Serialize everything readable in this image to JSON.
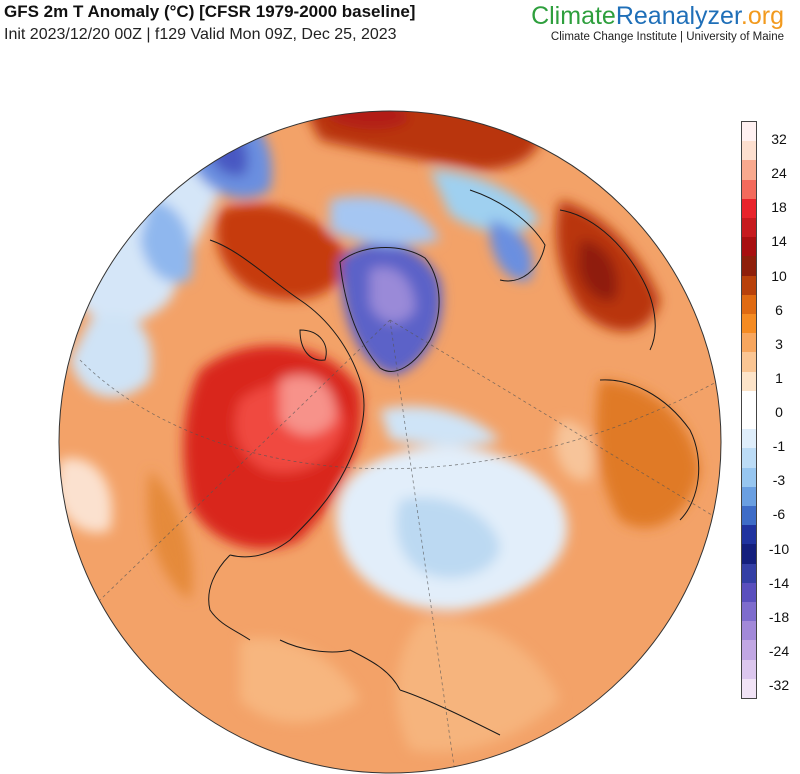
{
  "header": {
    "title": "GFS 2m T Anomaly (°C) [CFSR 1979-2000 baseline]",
    "subtitle": "Init 2023/12/20 00Z | f129 Valid Mon 09Z, Dec 25, 2023"
  },
  "brand": {
    "part_a": "Climate",
    "part_b": "Reanalyzer",
    "part_c": ".org",
    "tagline": "Climate Change Institute | University of Maine",
    "colors": {
      "climate": "#2e9f3d",
      "reanalyzer": "#1f6fb8",
      "org": "#f29a1e"
    }
  },
  "legend": {
    "labels": [
      "32",
      "24",
      "18",
      "14",
      "10",
      "6",
      "3",
      "1",
      "0",
      "-1",
      "-3",
      "-6",
      "-10",
      "-14",
      "-18",
      "-24",
      "-32"
    ],
    "colors": [
      "#fff1f1",
      "#fddfcf",
      "#f9a98e",
      "#f36a5c",
      "#e8232b",
      "#c61a1e",
      "#a80f10",
      "#8e1f0b",
      "#b8410b",
      "#df6a12",
      "#f58b22",
      "#f7a65e",
      "#fac593",
      "#fde4c9",
      "#ffffff",
      "#ffffff",
      "#dfeefb",
      "#bcdcf6",
      "#97c6f0",
      "#6a9fe1",
      "#3e6cc7",
      "#20339f",
      "#141f7d",
      "#343fa5",
      "#5a4fbd",
      "#7e6ccd",
      "#a289d9",
      "#c1a7e3",
      "#dcc7ee",
      "#f1e3f6"
    ]
  },
  "map": {
    "projection": "orthographic",
    "center": "North Atlantic / Arctic",
    "regions": [
      {
        "name": "eastern-north-america",
        "anomaly": "warm"
      },
      {
        "name": "greenland",
        "anomaly": "cold"
      },
      {
        "name": "central-north-atlantic",
        "anomaly": "cool"
      },
      {
        "name": "eastern-europe-russia",
        "anomaly": "warm"
      },
      {
        "name": "alaska-yukon",
        "anomaly": "cold"
      },
      {
        "name": "north-africa",
        "anomaly": "warm"
      }
    ]
  }
}
